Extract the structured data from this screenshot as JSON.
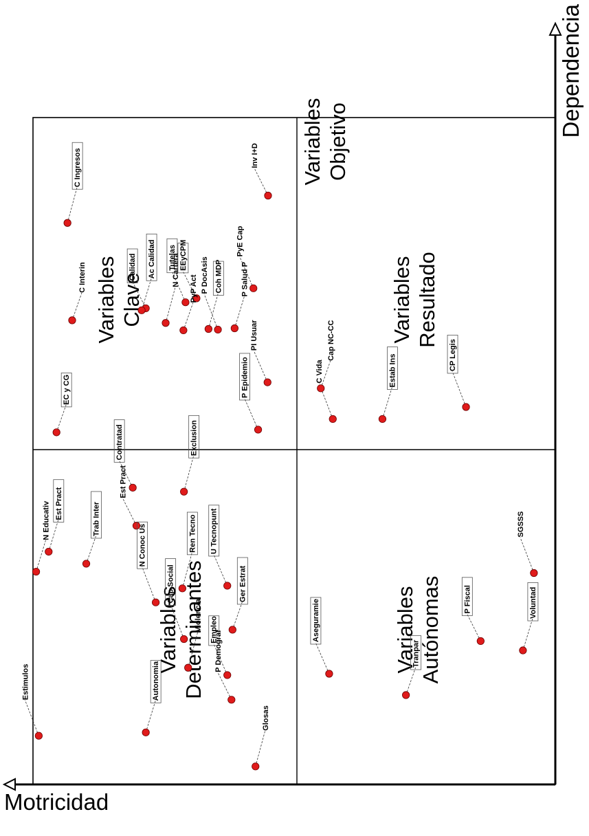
{
  "axes": {
    "x_label": "Dependencia",
    "y_label": "Motricidad"
  },
  "quadrants": [
    {
      "id": "clave",
      "lines": [
        "Variables",
        "Clave"
      ]
    },
    {
      "id": "objetivo",
      "lines": [
        "Variables",
        "Objetivo"
      ]
    },
    {
      "id": "resultado",
      "lines": [
        "Variables",
        "Resultado"
      ]
    },
    {
      "id": "determinantes",
      "lines": [
        "Variables",
        "Determinantes"
      ]
    },
    {
      "id": "autonomas",
      "lines": [
        "Variables",
        "Autónomas"
      ]
    }
  ],
  "chart_data": {
    "type": "scatter",
    "title": "",
    "xlabel": "Dependencia",
    "ylabel": "Motricidad",
    "xlim": [
      0,
      100
    ],
    "ylim": [
      0,
      100
    ],
    "points": [
      {
        "label": "EC y CG",
        "x": 52.8,
        "y": 95.5,
        "boxed": true
      },
      {
        "label": "PI Usuar",
        "x": 60.3,
        "y": 55.1,
        "boxed": false
      },
      {
        "label": "C Ingresos",
        "x": 84.2,
        "y": 93.4,
        "boxed": true
      },
      {
        "label": "Inv I+D",
        "x": 88.3,
        "y": 55.0,
        "boxed": false
      },
      {
        "label": "P Salud P",
        "x": 68.4,
        "y": 61.4,
        "boxed": false
      },
      {
        "label": "P DocAsis",
        "x": 68.2,
        "y": 64.6,
        "boxed": false
      },
      {
        "label": "C Interin",
        "x": 69.6,
        "y": 92.5,
        "boxed": false
      },
      {
        "label": "PyE Cap",
        "x": 74.4,
        "y": 57.8,
        "boxed": false
      },
      {
        "label": "Coh MDP",
        "x": 68.3,
        "y": 66.4,
        "boxed": true
      },
      {
        "label": "Calidad",
        "x": 71.4,
        "y": 78.4,
        "boxed": true
      },
      {
        "label": "Estab Ins",
        "x": 54.8,
        "y": 33.1,
        "boxed": true
      },
      {
        "label": "C Vida",
        "x": 54.8,
        "y": 42.6,
        "boxed": false
      },
      {
        "label": "PyP Act",
        "x": 68.1,
        "y": 71.2,
        "boxed": false
      },
      {
        "label": "Tutelas",
        "x": 72.3,
        "y": 70.8,
        "boxed": true
      },
      {
        "label": "N Cartera",
        "x": 69.2,
        "y": 74.6,
        "boxed": false
      },
      {
        "label": "EEyCPM",
        "x": 72.9,
        "y": 68.7,
        "boxed": true
      },
      {
        "label": "Ac Calidad",
        "x": 71.1,
        "y": 79.2,
        "boxed": true
      },
      {
        "label": "CP Legis",
        "x": 56.6,
        "y": 17.1,
        "boxed": true
      },
      {
        "label": "Cap NC-CC",
        "x": 59.4,
        "y": 44.9,
        "boxed": false
      },
      {
        "label": "P Epidemio",
        "x": 53.2,
        "y": 56.9,
        "boxed": true
      },
      {
        "label": "Exclusion",
        "x": 43.9,
        "y": 71.1,
        "boxed": true
      },
      {
        "label": "Contratad",
        "x": 44.5,
        "y": 80.9,
        "boxed": true
      },
      {
        "label": "Est Pract",
        "x": 34.9,
        "y": 97.0,
        "boxed": true
      },
      {
        "label": "SGSSS",
        "x": 31.7,
        "y": 4.1,
        "boxed": false
      },
      {
        "label": "Ger Estrat",
        "x": 23.2,
        "y": 61.8,
        "boxed": true
      },
      {
        "label": "Aseguramie",
        "x": 16.6,
        "y": 43.3,
        "boxed": true
      },
      {
        "label": "Ren Tecno",
        "x": 29.4,
        "y": 71.4,
        "boxed": true
      },
      {
        "label": "Est Pract",
        "x": 38.8,
        "y": 80.2,
        "boxed": false
      },
      {
        "label": "N Educativ",
        "x": 31.9,
        "y": 99.4,
        "boxed": false
      },
      {
        "label": "N Conoc Us",
        "x": 27.3,
        "y": 76.5,
        "boxed": true
      },
      {
        "label": "Trab Inter",
        "x": 33.1,
        "y": 89.8,
        "boxed": true
      },
      {
        "label": "U Tecnopunt",
        "x": 29.8,
        "y": 62.8,
        "boxed": true
      },
      {
        "label": "Violencia",
        "x": 17.5,
        "y": 70.3,
        "boxed": false
      },
      {
        "label": "P Fiscal",
        "x": 21.5,
        "y": 14.3,
        "boxed": true
      },
      {
        "label": "Voluntad",
        "x": 20.1,
        "y": 6.2,
        "boxed": true
      },
      {
        "label": "Cap Social",
        "x": 21.8,
        "y": 71.1,
        "boxed": true
      },
      {
        "label": "Tranpar",
        "x": 13.4,
        "y": 28.6,
        "boxed": true
      },
      {
        "label": "Empleo",
        "x": 16.4,
        "y": 62.8,
        "boxed": true
      },
      {
        "label": "Glosas",
        "x": 2.7,
        "y": 57.4,
        "boxed": false
      },
      {
        "label": "P Demograf",
        "x": 12.7,
        "y": 62.0,
        "boxed": false
      },
      {
        "label": "Autonomia",
        "x": 7.8,
        "y": 78.4,
        "boxed": true
      },
      {
        "label": "Estimulos",
        "x": 7.3,
        "y": 98.9,
        "boxed": false
      }
    ]
  }
}
